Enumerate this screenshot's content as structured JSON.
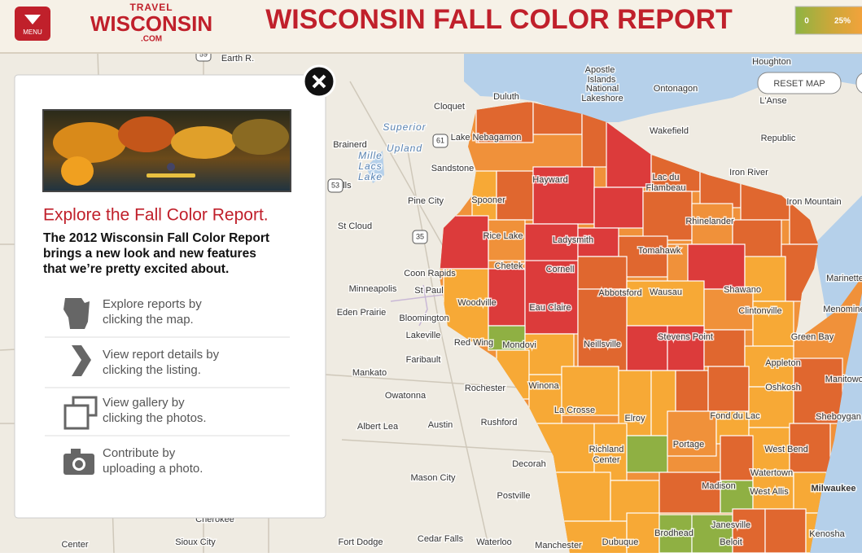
{
  "header": {
    "menu": "MENU",
    "logo_top": "TRAVEL",
    "logo_main": "WISCONSIN",
    "logo_sub": ".COM",
    "title": "WISCONSIN FALL COLOR REPORT",
    "legend": [
      "0",
      "25%"
    ]
  },
  "map": {
    "reset": "RESET MAP",
    "shields": [
      "59",
      "61",
      "53",
      "35"
    ],
    "labels": [
      "Earth R.",
      "Houghton",
      "Ontonagon",
      "Apostle",
      "Islands",
      "National",
      "Lakeshore",
      "Duluth",
      "Cloquet",
      "L'Anse",
      "Superior",
      "Upland",
      "Brainerd",
      "Mille",
      "Lacs",
      "Lake",
      "Wakefield",
      "Lake Nebagamon",
      "Republic",
      "Sandstone",
      "Hayward",
      "Lac du",
      "Flambeau",
      "Iron River",
      "Iron Mountain",
      "Falls",
      "Pine City",
      "Spooner",
      "St Cloud",
      "Rhinelander",
      "Rice Lake",
      "Ladysmith",
      "Marinette",
      "Tomahawk",
      "Coon Rapids",
      "Chetek",
      "Cornell",
      "Minneapolis",
      "St Paul",
      "Wausau",
      "Shawano",
      "Eden Prairie",
      "Bloomington",
      "Menominee",
      "Abbotsford",
      "Woodville",
      "Eau Claire",
      "Clintonville",
      "Lakeville",
      "Stevens Point",
      "Green Bay",
      "Red Wing",
      "Mondovi",
      "Neillsville",
      "Faribault",
      "Appleton",
      "Mankato",
      "Manitowoc",
      "Owatonna",
      "Rochester",
      "Winona",
      "Oshkosh",
      "Albert Lea",
      "Austin",
      "Rushford",
      "La Crosse",
      "Sheboygan",
      "Fond du Lac",
      "Elroy",
      "Richland",
      "Center",
      "Portage",
      "West Bend",
      "Decorah",
      "Watertown",
      "Mason City",
      "Madison",
      "Milwaukee",
      "West Allis",
      "Postville",
      "Janesville",
      "Cherokee",
      "Brodhead",
      "Beloit",
      "Kenosha",
      "Center",
      "Sioux City",
      "Fort Dodge",
      "Cedar Falls",
      "Waterloo",
      "Manchester",
      "Dubuque"
    ]
  },
  "panel": {
    "heading": "Explore the Fall Color Report.",
    "intro": [
      "The 2012 Wisconsin Fall Color Report",
      "brings a new look and new features",
      "that we’re pretty excited about."
    ],
    "items": [
      {
        "lines": [
          "Explore reports by",
          "clicking the map."
        ]
      },
      {
        "lines": [
          "View report details by",
          "clicking the listing."
        ]
      },
      {
        "lines": [
          "View gallery by",
          "clicking the photos."
        ]
      },
      {
        "lines": [
          "Contribute by",
          "uploading a photo."
        ]
      }
    ]
  }
}
